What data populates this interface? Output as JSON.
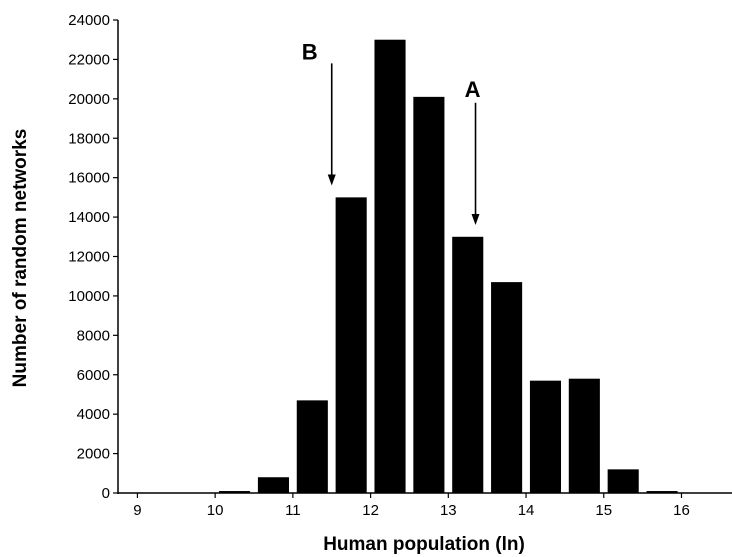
{
  "chart_data": {
    "type": "bar",
    "xlabel": "Human population (ln)",
    "ylabel": "Number of random networks",
    "xlim": [
      8.75,
      16.65
    ],
    "ylim": [
      0,
      24000
    ],
    "x_ticks": [
      9,
      10,
      11,
      12,
      13,
      14,
      15,
      16
    ],
    "y_ticks": [
      0,
      2000,
      4000,
      6000,
      8000,
      10000,
      12000,
      14000,
      16000,
      18000,
      20000,
      22000,
      24000
    ],
    "bar_color": "#000000",
    "bar_width": 0.4,
    "bins": [
      {
        "x": 10.25,
        "value": 100
      },
      {
        "x": 10.75,
        "value": 800
      },
      {
        "x": 11.25,
        "value": 4700
      },
      {
        "x": 11.75,
        "value": 15000
      },
      {
        "x": 12.25,
        "value": 23000
      },
      {
        "x": 12.75,
        "value": 20100
      },
      {
        "x": 13.25,
        "value": 13000
      },
      {
        "x": 13.75,
        "value": 10700
      },
      {
        "x": 14.25,
        "value": 5700
      },
      {
        "x": 14.75,
        "value": 5800
      },
      {
        "x": 15.25,
        "value": 1200
      },
      {
        "x": 15.75,
        "value": 100
      }
    ],
    "annotations": [
      {
        "label": "B",
        "x": 11.5,
        "y_start": 21800,
        "y_end": 15600
      },
      {
        "label": "A",
        "x": 13.35,
        "y_start": 19800,
        "y_end": 13600
      }
    ],
    "grid": false,
    "legend": "none"
  }
}
